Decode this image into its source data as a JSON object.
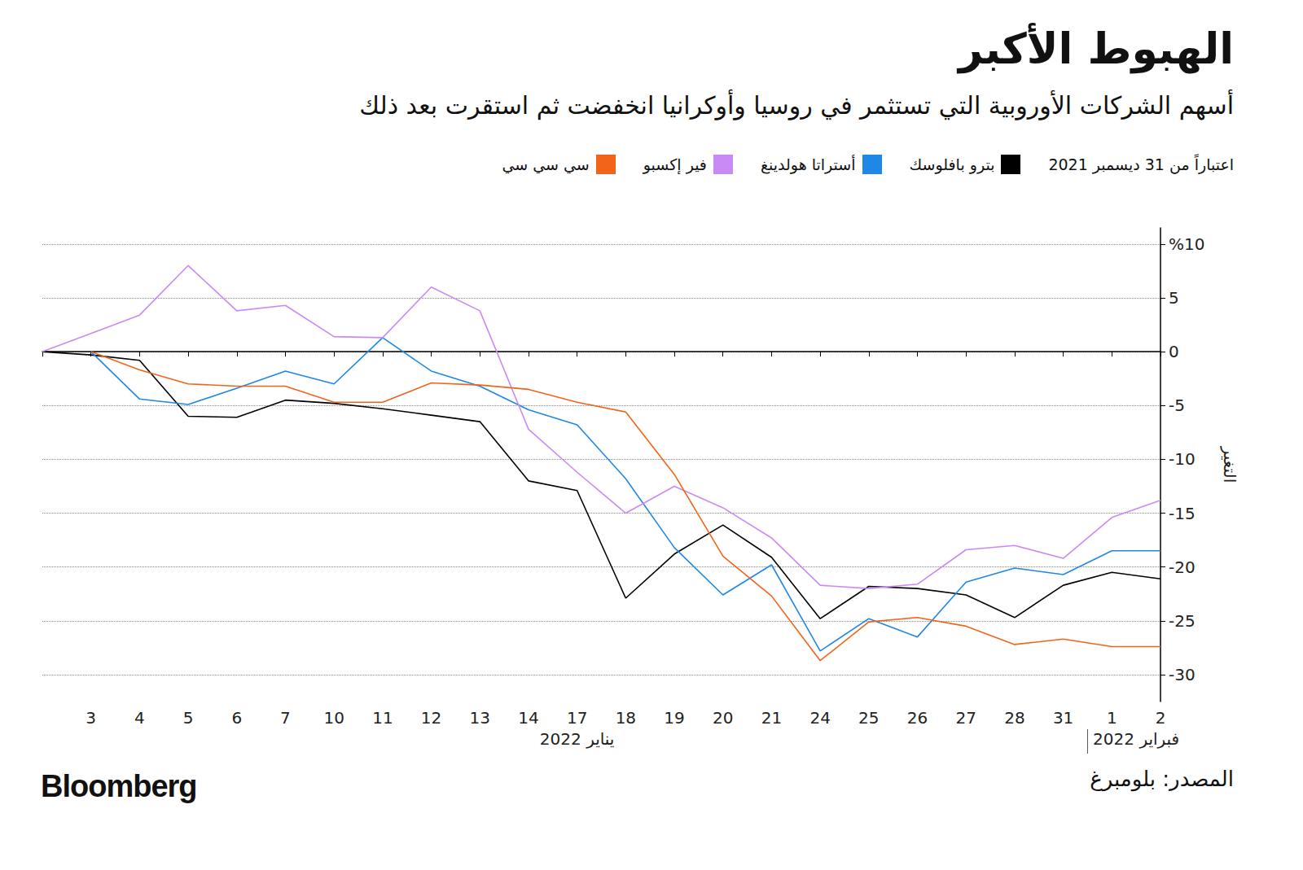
{
  "chart_data": {
    "type": "line",
    "title": "الهبوط الأكبر",
    "subtitle": "أسهم الشركات الأوروبية التي تستثمر في روسيا وأوكرانيا انخفضت ثم استقرت بعد ذلك",
    "legend_title": "اعتباراً من 31 ديسمبر 2021",
    "y_label": "التغير",
    "source": "المصدر: بلومبرغ",
    "brand": "Bloomberg",
    "categories": [
      null,
      "3",
      "4",
      "5",
      "6",
      "7",
      "10",
      "11",
      "12",
      "13",
      "14",
      "17",
      "18",
      "19",
      "20",
      "21",
      "24",
      "25",
      "26",
      "27",
      "28",
      "31",
      "1",
      "2"
    ],
    "x_groups": [
      {
        "label": "يناير 2022",
        "from": 1,
        "to": 21
      },
      {
        "label": "فبراير 2022",
        "from": 22,
        "to": 23
      }
    ],
    "series": [
      {
        "name": "بترو بافلوسك",
        "color": "#000000",
        "values": [
          0,
          -0.3,
          -0.8,
          -6.0,
          -6.1,
          -4.5,
          -4.8,
          -5.3,
          -5.9,
          -6.5,
          -12.0,
          -12.9,
          -22.9,
          -18.8,
          -16.1,
          -19.1,
          -24.8,
          -21.8,
          -22.0,
          -22.6,
          -24.7,
          -21.7,
          -20.5,
          -21.1
        ]
      },
      {
        "name": "أستراتا هولدينغ",
        "color": "#1f87e5",
        "values": [
          null,
          0,
          -4.4,
          -4.9,
          -3.4,
          -1.8,
          -3.0,
          1.3,
          -1.8,
          -3.2,
          -5.4,
          -6.8,
          -11.8,
          -18.2,
          -22.6,
          -19.8,
          -27.8,
          -24.8,
          -26.5,
          -21.4,
          -20.1,
          -20.7,
          -18.5,
          -18.5
        ]
      },
      {
        "name": "فير إكسبو",
        "color": "#c98af5",
        "values": [
          0,
          1.7,
          3.4,
          8.0,
          3.8,
          4.3,
          1.4,
          1.3,
          6.0,
          3.8,
          -7.2,
          -11.2,
          -15.0,
          -12.5,
          -14.5,
          -17.3,
          -21.7,
          -22.0,
          -21.6,
          -18.4,
          -18.0,
          -19.2,
          -15.4,
          -13.8
        ]
      },
      {
        "name": "سي سي سي",
        "color": "#f26419",
        "values": [
          null,
          0,
          -1.7,
          -3.0,
          -3.2,
          -3.2,
          -4.7,
          -4.7,
          -2.9,
          -3.1,
          -3.5,
          -4.7,
          -5.6,
          -11.4,
          -19.0,
          -22.7,
          -28.7,
          -25.1,
          -24.7,
          -25.5,
          -27.2,
          -26.7,
          -27.4,
          -27.4
        ]
      }
    ],
    "ylim": [
      -32.5,
      11.5
    ],
    "yticks": [
      {
        "value": 10,
        "label": "%10"
      },
      5,
      0,
      -5,
      -10,
      -15,
      -20,
      -25,
      -30
    ],
    "grid": true
  }
}
